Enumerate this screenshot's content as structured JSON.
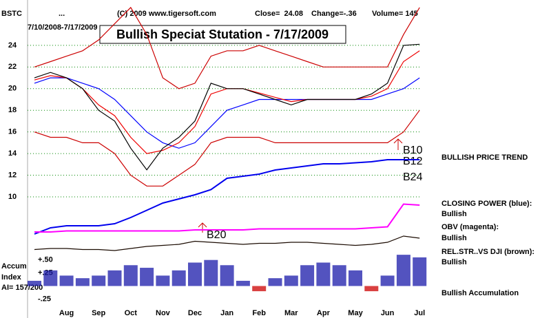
{
  "header": {
    "symbol": "BSTC",
    "dots": "...",
    "copyright": "(C) 2009 www.tigersoft.com",
    "close": "Close=  24.08",
    "change": "Change=-.36",
    "volume": "Volume= 145",
    "date_range": "7/10/2008-7/17/2009",
    "title": "Bullish Speciat Stutation - 7/17/2009"
  },
  "signals": [
    "B10",
    "B12",
    "B24",
    "B20"
  ],
  "annotations": {
    "trend": "BULLISH PRICE TREND",
    "cp_status": "Bullish",
    "obv_status": "Bullish",
    "rs_status": "Bullish",
    "accum_status": "Bullish Accumulation",
    "accum_label_1": "Accum",
    "accum_label_2": "Index",
    "ai": "AI= 157/200"
  },
  "chart_data": [
    {
      "type": "line",
      "categories": [
        null,
        null,
        "Aug",
        null,
        "Sep",
        null,
        "Oct",
        null,
        "Nov",
        null,
        "Dec",
        null,
        "Jan",
        null,
        "Feb",
        null,
        "Mar",
        null,
        "Apr",
        null,
        "May",
        null,
        "Jun",
        null,
        "Jul"
      ],
      "ylim": [
        10,
        28
      ],
      "yticks": [
        10,
        12,
        14,
        16,
        18,
        20,
        22,
        24
      ],
      "grid": true,
      "series": [
        {
          "color": "#cc0000",
          "values": [
            22,
            22.5,
            23,
            23.5,
            24.5,
            26,
            27.5,
            25,
            21,
            20,
            20.5,
            23,
            23.5,
            23.5,
            24,
            23.5,
            23,
            22.5,
            22,
            22,
            22,
            22,
            22,
            25,
            27.5
          ]
        },
        {
          "color": "#cc0000",
          "values": [
            16,
            15.5,
            15.5,
            15,
            15,
            14,
            12,
            11,
            11,
            12,
            13,
            15,
            15.5,
            15.5,
            15.5,
            15,
            15,
            15,
            15,
            15,
            15,
            15,
            15,
            16,
            18
          ]
        },
        {
          "color": "#0000ff",
          "values": [
            20.5,
            21,
            21,
            20.5,
            20,
            19,
            17.5,
            16,
            15,
            14.5,
            15,
            16.5,
            18,
            18.5,
            19,
            19,
            19,
            19,
            19,
            19,
            19,
            19,
            19.5,
            20,
            21
          ]
        },
        {
          "color": "#ee0000",
          "values": [
            20.8,
            21.2,
            21,
            20,
            18.5,
            17.5,
            15.5,
            14,
            14.3,
            15,
            16.5,
            19.5,
            20,
            20,
            19.6,
            19.2,
            18.8,
            19,
            19,
            19,
            19,
            19.3,
            20,
            22.5,
            23.5
          ]
        },
        {
          "color": "#000000",
          "values": [
            21,
            21.5,
            21,
            20,
            18,
            17,
            14.5,
            12.5,
            14.5,
            15.5,
            17,
            20.5,
            20,
            20,
            19.5,
            19,
            18.5,
            19,
            19,
            19,
            19,
            19.5,
            20.5,
            24,
            24.1
          ]
        }
      ]
    },
    {
      "type": "line",
      "ylim": [
        0,
        100
      ],
      "series": [
        {
          "name": "CLOSING POWER (blue):",
          "color": "#0000ee",
          "values": [
            20,
            26,
            28,
            28,
            28,
            30,
            36,
            43,
            50,
            54,
            58,
            63,
            74,
            76,
            78,
            82,
            84,
            86,
            88,
            88,
            89,
            90,
            92,
            92,
            92
          ]
        },
        {
          "name": "OBV (magenta):",
          "color": "#ff00ff",
          "values": [
            22,
            22,
            23,
            23,
            23,
            23,
            23,
            23,
            23,
            23,
            24,
            24,
            24,
            24,
            25,
            25,
            25,
            25,
            25,
            25,
            25,
            26,
            27,
            49,
            48
          ]
        },
        {
          "name": "REL.STR..VS DJI (brown):",
          "color": "#1a0a00",
          "values": [
            5,
            6,
            6,
            5,
            5,
            4,
            6,
            8,
            9,
            10,
            13,
            12,
            11,
            10,
            11,
            11,
            12,
            12,
            11,
            10,
            9,
            10,
            12,
            18,
            16
          ]
        }
      ]
    },
    {
      "type": "bar",
      "ylim": [
        -0.35,
        0.8
      ],
      "yticks": [
        {
          "value": 0.5,
          "label": "+.50"
        },
        {
          "value": 0.25,
          "label": "+.25"
        },
        {
          "value": -0.25,
          "label": "-.25"
        }
      ],
      "color": "#1a1aaa",
      "negative_color": "#cc0000",
      "values": [
        0.1,
        0.3,
        0.2,
        0.15,
        0.2,
        0.3,
        0.4,
        0.35,
        0.2,
        0.3,
        0.45,
        0.5,
        0.4,
        0.1,
        -0.1,
        0.15,
        0.2,
        0.4,
        0.45,
        0.4,
        0.3,
        -0.1,
        0.2,
        0.6,
        0.55
      ]
    }
  ]
}
